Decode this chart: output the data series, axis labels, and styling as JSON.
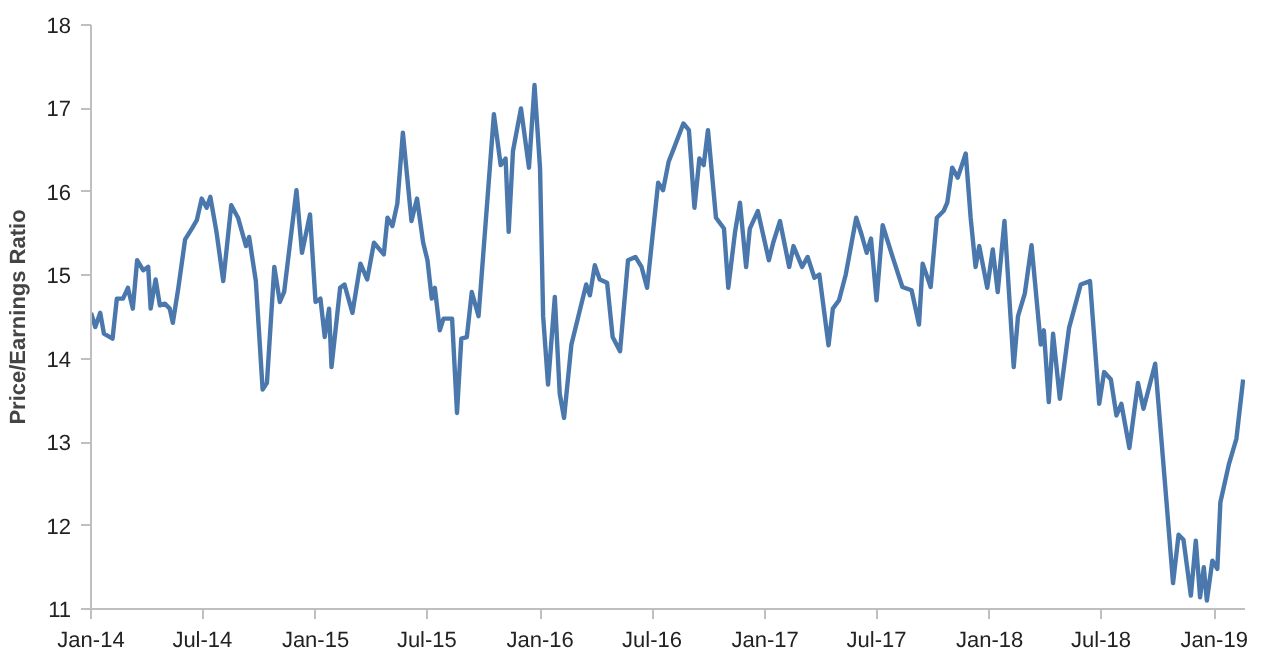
{
  "chart_data": {
    "type": "line",
    "ylabel": "Price/Earnings Ratio",
    "grid": false,
    "marker": "none",
    "line_style": "solid",
    "xlim": [
      "2014-01-01",
      "2019-02-20"
    ],
    "ylim": [
      11,
      18
    ],
    "yticks": [
      11,
      12,
      13,
      14,
      15,
      16,
      17,
      18
    ],
    "xticks": [
      {
        "value": "2014-01-01",
        "label": "Jan-14"
      },
      {
        "value": "2014-07-01",
        "label": "Jul-14"
      },
      {
        "value": "2015-01-01",
        "label": "Jan-15"
      },
      {
        "value": "2015-07-01",
        "label": "Jul-15"
      },
      {
        "value": "2016-01-01",
        "label": "Jan-16"
      },
      {
        "value": "2016-07-01",
        "label": "Jul-16"
      },
      {
        "value": "2017-01-01",
        "label": "Jan-17"
      },
      {
        "value": "2017-07-01",
        "label": "Jul-17"
      },
      {
        "value": "2018-01-01",
        "label": "Jan-18"
      },
      {
        "value": "2018-07-01",
        "label": "Jul-18"
      },
      {
        "value": "2019-01-01",
        "label": "Jan-19"
      }
    ],
    "series": [
      {
        "color": "#4a78ad",
        "x": [
          "2014-01-01",
          "2014-01-08",
          "2014-01-16",
          "2014-01-22",
          "2014-02-05",
          "2014-02-12",
          "2014-02-22",
          "2014-03-02",
          "2014-03-10",
          "2014-03-17",
          "2014-03-27",
          "2014-04-04",
          "2014-04-08",
          "2014-04-16",
          "2014-04-23",
          "2014-05-01",
          "2014-05-09",
          "2014-05-14",
          "2014-05-23",
          "2014-06-03",
          "2014-06-14",
          "2014-06-22",
          "2014-06-30",
          "2014-07-08",
          "2014-07-14",
          "2014-07-24",
          "2014-08-04",
          "2014-08-17",
          "2014-08-28",
          "2014-09-10",
          "2014-09-15",
          "2014-09-26",
          "2014-10-07",
          "2014-10-14",
          "2014-10-26",
          "2014-11-04",
          "2014-11-11",
          "2014-12-01",
          "2014-12-10",
          "2014-12-23",
          "2015-01-01",
          "2015-01-09",
          "2015-01-16",
          "2015-01-23",
          "2015-01-27",
          "2015-02-10",
          "2015-02-17",
          "2015-03-02",
          "2015-03-15",
          "2015-03-26",
          "2015-04-06",
          "2015-04-22",
          "2015-04-28",
          "2015-05-06",
          "2015-05-14",
          "2015-05-23",
          "2015-06-06",
          "2015-06-15",
          "2015-06-25",
          "2015-07-02",
          "2015-07-09",
          "2015-07-14",
          "2015-07-22",
          "2015-07-28",
          "2015-08-11",
          "2015-08-19",
          "2015-08-26",
          "2015-09-04",
          "2015-09-12",
          "2015-09-23",
          "2015-10-18",
          "2015-10-29",
          "2015-11-06",
          "2015-11-11",
          "2015-11-18",
          "2015-12-01",
          "2015-12-14",
          "2015-12-23",
          "2016-01-01",
          "2016-01-06",
          "2016-01-14",
          "2016-01-25",
          "2016-02-02",
          "2016-02-09",
          "2016-02-21",
          "2016-03-16",
          "2016-03-22",
          "2016-03-30",
          "2016-04-07",
          "2016-04-19",
          "2016-04-28",
          "2016-05-10",
          "2016-05-23",
          "2016-06-04",
          "2016-06-14",
          "2016-06-23",
          "2016-07-11",
          "2016-07-19",
          "2016-07-28",
          "2016-08-06",
          "2016-08-21",
          "2016-08-30",
          "2016-09-08",
          "2016-09-16",
          "2016-09-23",
          "2016-09-30",
          "2016-10-13",
          "2016-10-26",
          "2016-11-02",
          "2016-11-13",
          "2016-11-21",
          "2016-12-01",
          "2016-12-07",
          "2016-12-20",
          "2017-01-07",
          "2017-01-14",
          "2017-01-25",
          "2017-02-09",
          "2017-02-16",
          "2017-03-02",
          "2017-03-11",
          "2017-03-22",
          "2017-03-30",
          "2017-04-14",
          "2017-04-21",
          "2017-05-01",
          "2017-05-12",
          "2017-05-29",
          "2017-06-07",
          "2017-06-15",
          "2017-06-22",
          "2017-07-01",
          "2017-07-11",
          "2017-07-28",
          "2017-08-12",
          "2017-08-27",
          "2017-09-08",
          "2017-09-14",
          "2017-09-27",
          "2017-10-07",
          "2017-10-18",
          "2017-10-24",
          "2017-11-01",
          "2017-11-10",
          "2017-11-23",
          "2017-12-01",
          "2017-12-09",
          "2017-12-15",
          "2017-12-28",
          "2018-01-06",
          "2018-01-14",
          "2018-01-25",
          "2018-02-09",
          "2018-02-16",
          "2018-02-27",
          "2018-03-10",
          "2018-03-25",
          "2018-03-30",
          "2018-04-07",
          "2018-04-14",
          "2018-04-25",
          "2018-05-10",
          "2018-05-29",
          "2018-06-13",
          "2018-06-28",
          "2018-07-06",
          "2018-07-17",
          "2018-07-26",
          "2018-08-03",
          "2018-08-16",
          "2018-08-30",
          "2018-09-08",
          "2018-09-27",
          "2018-10-15",
          "2018-10-26",
          "2018-11-04",
          "2018-11-12",
          "2018-11-24",
          "2018-12-02",
          "2018-12-09",
          "2018-12-15",
          "2018-12-20",
          "2018-12-29",
          "2019-01-06",
          "2019-01-11",
          "2019-01-25",
          "2019-02-06",
          "2019-02-17"
        ],
        "values": [
          14.55,
          14.38,
          14.55,
          14.3,
          14.24,
          14.72,
          14.72,
          14.85,
          14.6,
          15.18,
          15.06,
          15.1,
          14.6,
          14.95,
          14.64,
          14.66,
          14.6,
          14.43,
          14.85,
          15.43,
          15.56,
          15.66,
          15.92,
          15.81,
          15.94,
          15.52,
          14.93,
          15.84,
          15.69,
          15.35,
          15.46,
          14.93,
          13.63,
          13.71,
          15.1,
          14.68,
          14.8,
          16.02,
          15.27,
          15.73,
          14.68,
          14.72,
          14.26,
          14.6,
          13.9,
          14.85,
          14.89,
          14.55,
          15.14,
          14.95,
          15.39,
          15.25,
          15.69,
          15.59,
          15.86,
          16.71,
          15.65,
          15.92,
          15.39,
          15.18,
          14.72,
          14.85,
          14.34,
          14.48,
          14.48,
          13.35,
          14.24,
          14.26,
          14.8,
          14.51,
          16.93,
          16.32,
          16.4,
          15.52,
          16.49,
          17.0,
          16.29,
          17.28,
          16.28,
          14.51,
          13.69,
          14.74,
          13.58,
          13.29,
          14.17,
          14.89,
          14.76,
          15.12,
          14.95,
          14.91,
          14.26,
          14.09,
          15.18,
          15.22,
          15.1,
          14.85,
          16.11,
          16.02,
          16.36,
          16.53,
          16.82,
          16.74,
          15.81,
          16.4,
          16.32,
          16.74,
          15.69,
          15.56,
          14.85,
          15.52,
          15.87,
          15.1,
          15.56,
          15.77,
          15.18,
          15.39,
          15.65,
          15.1,
          15.35,
          15.1,
          15.22,
          14.97,
          15.01,
          14.16,
          14.6,
          14.7,
          15.01,
          15.69,
          15.48,
          15.27,
          15.44,
          14.7,
          15.6,
          15.2,
          14.86,
          14.82,
          14.41,
          15.14,
          14.86,
          15.69,
          15.77,
          15.87,
          16.29,
          16.17,
          16.46,
          15.69,
          15.1,
          15.35,
          14.85,
          15.31,
          14.8,
          15.65,
          13.9,
          14.51,
          14.78,
          15.36,
          14.17,
          14.34,
          13.48,
          14.3,
          13.52,
          14.37,
          14.89,
          14.93,
          13.46,
          13.84,
          13.75,
          13.32,
          13.46,
          12.93,
          13.71,
          13.4,
          13.94,
          12.32,
          11.31,
          11.89,
          11.83,
          11.16,
          11.82,
          11.14,
          11.5,
          11.1,
          11.58,
          11.48,
          12.28,
          12.74,
          13.04,
          13.75
        ]
      }
    ]
  }
}
